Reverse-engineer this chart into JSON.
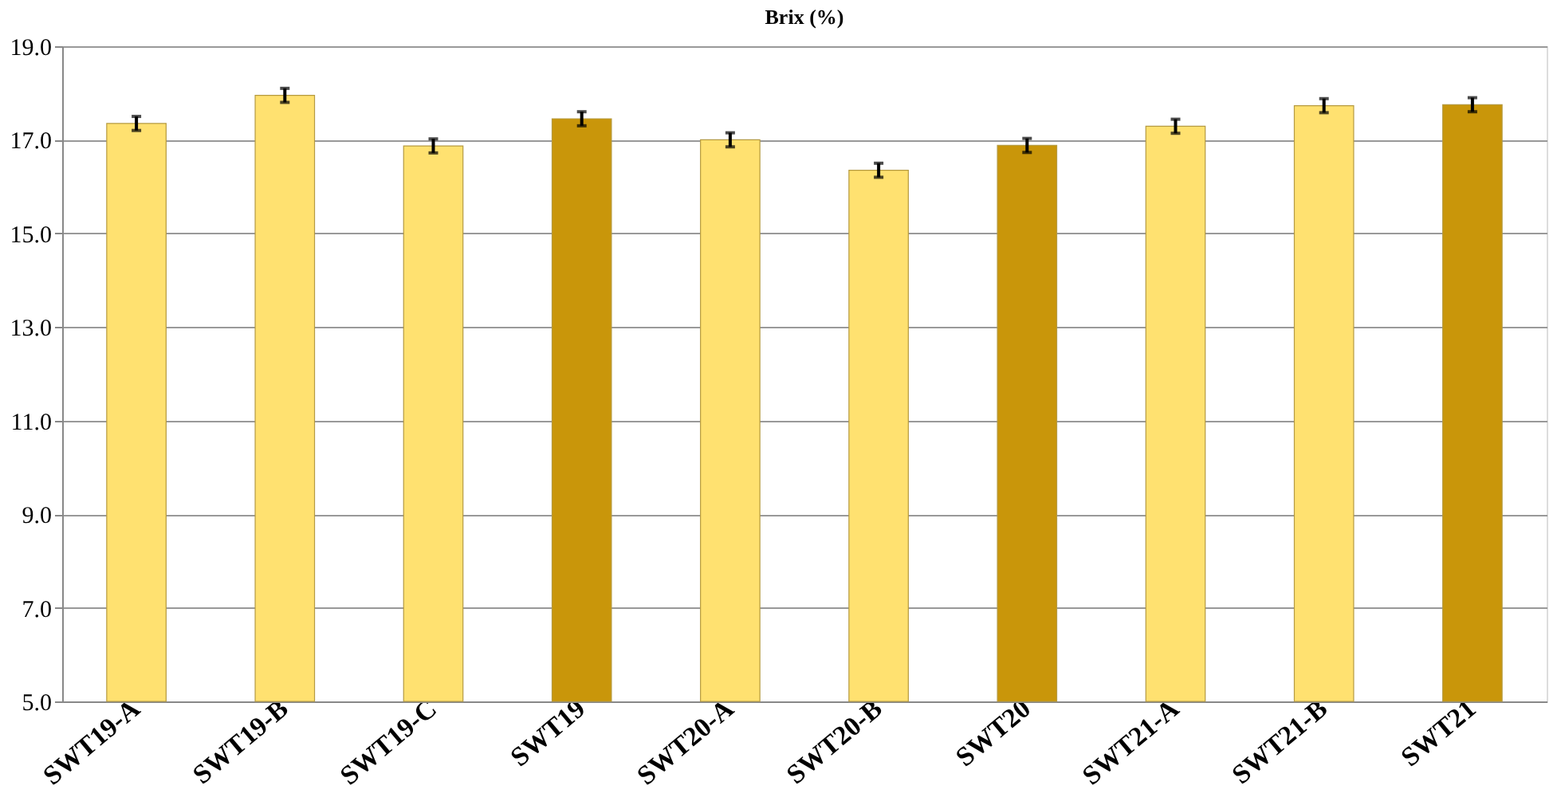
{
  "chart_data": {
    "type": "bar",
    "title": "Brix (%)",
    "categories": [
      "SWT19-A",
      "SWT19-B",
      "SWT19-C",
      "SWT19",
      "SWT20-A",
      "SWT20-B",
      "SWT20",
      "SWT21-A",
      "SWT21-B",
      "SWT21"
    ],
    "values": [
      17.35,
      17.95,
      16.87,
      17.45,
      17.0,
      16.35,
      16.88,
      17.29,
      17.73,
      17.75
    ],
    "errors": [
      0.15,
      0.15,
      0.15,
      0.15,
      0.15,
      0.15,
      0.15,
      0.15,
      0.15,
      0.15
    ],
    "colors": [
      "#ffe170",
      "#ffe170",
      "#ffe170",
      "#c9960a",
      "#ffe170",
      "#ffe170",
      "#c9960a",
      "#ffe170",
      "#ffe170",
      "#c9960a"
    ],
    "ylim": [
      5.0,
      19.0
    ],
    "yticks": [
      {
        "value": 5,
        "label": "5.0"
      },
      {
        "value": 7,
        "label": "7.0"
      },
      {
        "value": 9,
        "label": "9.0"
      },
      {
        "value": 11,
        "label": "11.0"
      },
      {
        "value": 13,
        "label": "13.0"
      },
      {
        "value": 15,
        "label": "15.0"
      },
      {
        "value": 17,
        "label": "17.0"
      },
      {
        "value": 19,
        "label": "19.0"
      }
    ],
    "grid": "y"
  }
}
